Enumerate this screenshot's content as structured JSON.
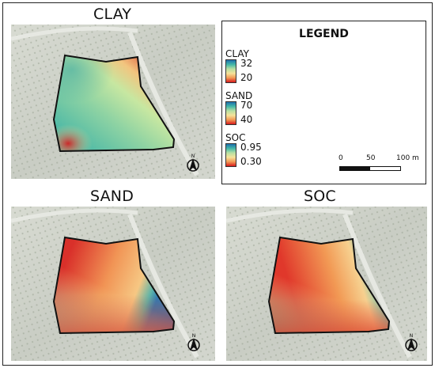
{
  "panels": {
    "clay": {
      "title": "CLAY"
    },
    "sand": {
      "title": "SAND"
    },
    "soc": {
      "title": "SOC"
    }
  },
  "legend": {
    "title": "LEGEND",
    "entries": [
      {
        "name": "CLAY",
        "max": "32",
        "min": "20"
      },
      {
        "name": "SAND",
        "max": "70",
        "min": "40"
      },
      {
        "name": "SOC",
        "max": "0.95",
        "min": "0.30"
      }
    ],
    "ramp_colors": [
      "#1f6fae",
      "#43b8a8",
      "#b8e0a2",
      "#f6e29a",
      "#f29a55",
      "#d7191c"
    ],
    "scale_bar": {
      "ticks": [
        "0",
        "50",
        "100 m"
      ]
    }
  },
  "colors": {
    "background_imagery": "#cfd3cb",
    "field_border": "#111111",
    "high": "#2c7bb6",
    "low": "#d7191c"
  },
  "north_arrow": {
    "letter": "N",
    "icon": "north-arrow-icon"
  }
}
